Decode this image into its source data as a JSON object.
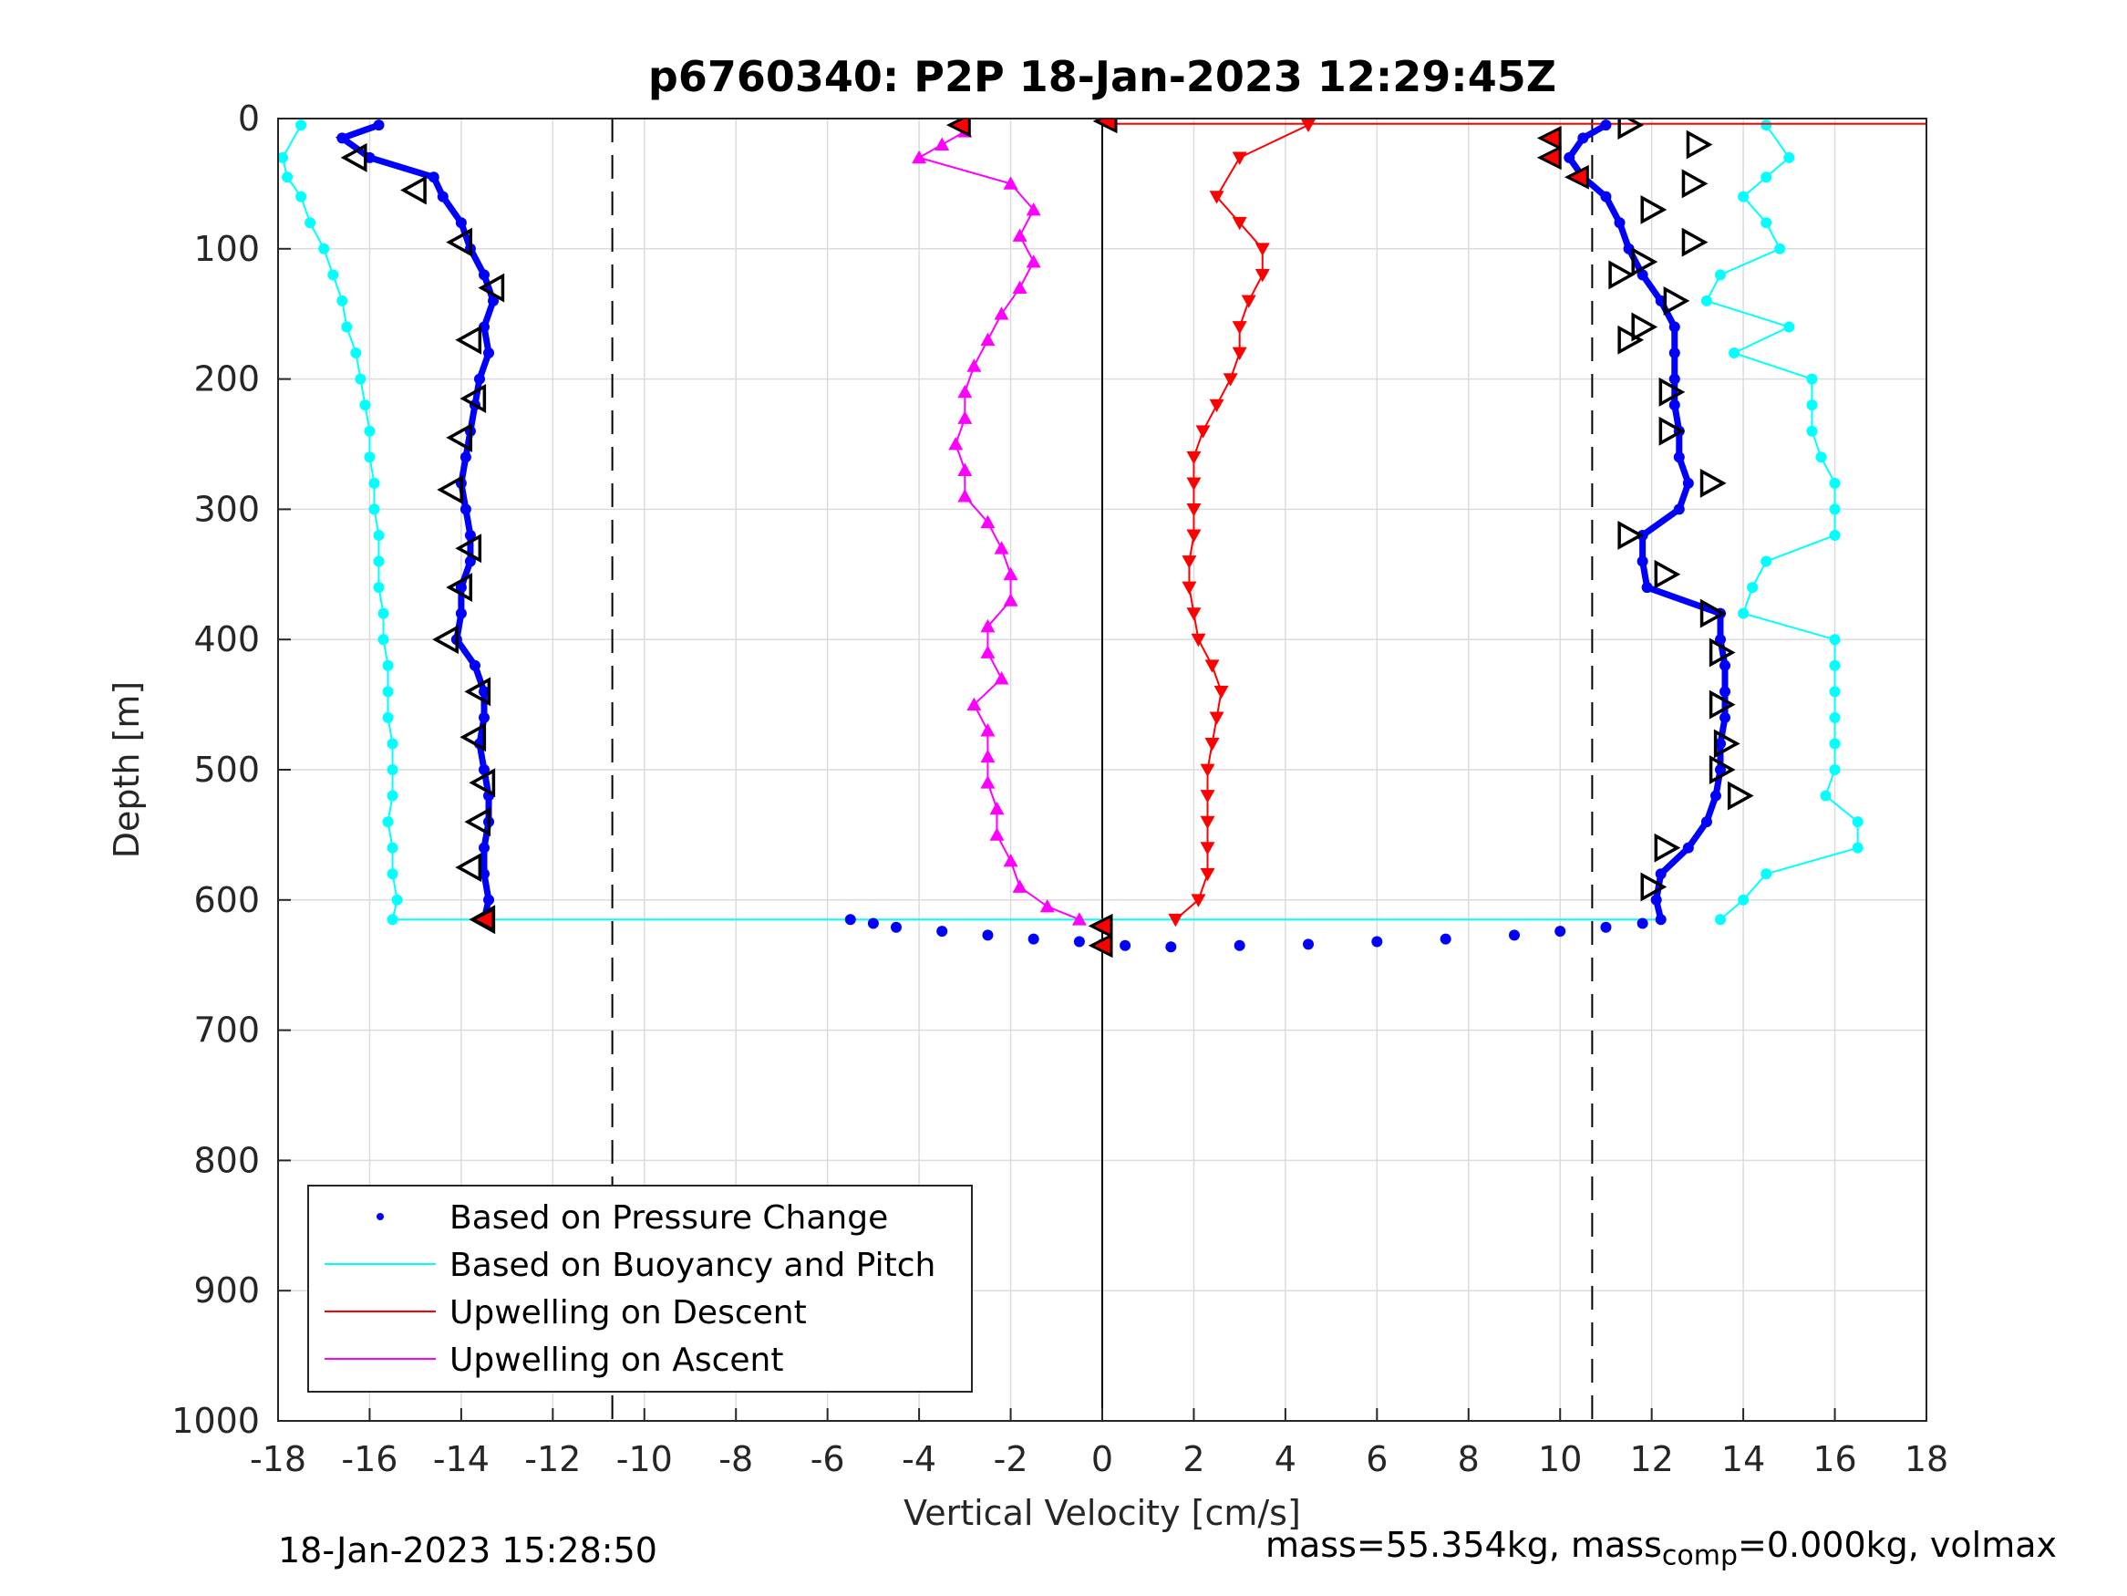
{
  "chart_data": {
    "type": "scatter",
    "title": "p6760340: P2P 18-Jan-2023 12:29:45Z",
    "xlabel": "Vertical Velocity [cm/s]",
    "ylabel": "Depth [m]",
    "xlim": [
      -18,
      18
    ],
    "ylim": [
      0,
      1000
    ],
    "y_reversed": true,
    "xticks": [
      "-18",
      "-16",
      "-14",
      "-12",
      "-10",
      "-8",
      "-6",
      "-4",
      "-2",
      "0",
      "2",
      "4",
      "6",
      "8",
      "10",
      "12",
      "14",
      "16",
      "18"
    ],
    "yticks": [
      "0",
      "100",
      "200",
      "300",
      "400",
      "500",
      "600",
      "700",
      "800",
      "900",
      "1000"
    ],
    "grid": true,
    "legend_position": "bottom-left",
    "legend": [
      {
        "label": "Based on Pressure Change",
        "style": "dot",
        "color": "#0000ff"
      },
      {
        "label": "Based on Buoyancy and Pitch",
        "style": "line",
        "color": "#00ffff"
      },
      {
        "label": "Upwelling on Descent",
        "style": "line",
        "color": "#ff0000"
      },
      {
        "label": "Upwelling on Ascent",
        "style": "line",
        "color": "#ff00ff"
      }
    ],
    "reference_lines": {
      "dashed_x": [
        -10.7,
        10.7
      ],
      "solid_x": [
        0
      ]
    },
    "series": [
      {
        "name": "Based on Pressure Change",
        "color": "#0000ff",
        "marker": "dot",
        "depth": [
          5,
          15,
          30,
          45,
          60,
          80,
          100,
          120,
          140,
          160,
          180,
          200,
          220,
          240,
          260,
          280,
          300,
          320,
          340,
          360,
          380,
          400,
          420,
          440,
          460,
          480,
          500,
          520,
          540,
          560,
          580,
          600,
          615
        ],
        "descent_velocity": [
          -15.8,
          -16.6,
          -16.0,
          -14.6,
          -14.4,
          -14.0,
          -13.8,
          -13.5,
          -13.3,
          -13.5,
          -13.4,
          -13.6,
          -13.7,
          -13.8,
          -13.9,
          -14.0,
          -13.9,
          -13.8,
          -13.8,
          -14.0,
          -14.0,
          -14.1,
          -13.7,
          -13.5,
          -13.5,
          -13.6,
          -13.5,
          -13.4,
          -13.4,
          -13.5,
          -13.5,
          -13.4,
          -13.5
        ],
        "ascent_velocity": [
          11.0,
          10.5,
          10.2,
          10.5,
          11.0,
          11.3,
          11.5,
          11.8,
          12.2,
          12.5,
          12.5,
          12.5,
          12.5,
          12.6,
          12.6,
          12.8,
          12.6,
          11.8,
          11.8,
          11.9,
          13.5,
          13.5,
          13.6,
          13.6,
          13.6,
          13.5,
          13.5,
          13.4,
          13.2,
          12.8,
          12.2,
          12.1,
          12.2
        ],
        "bottom_turn": {
          "depth": [
            615,
            618,
            621,
            624,
            627,
            630,
            632,
            634,
            635,
            636,
            635,
            634,
            632,
            630,
            627,
            624,
            621,
            618
          ],
          "velocity": [
            -5.5,
            -5.0,
            -4.5,
            -3.5,
            -2.5,
            -1.5,
            -0.5,
            0,
            0.5,
            1.5,
            3.0,
            4.5,
            6.0,
            7.5,
            9.0,
            10.0,
            11.0,
            11.8
          ]
        }
      },
      {
        "name": "Based on Buoyancy and Pitch",
        "color": "#00ffff",
        "marker": "dot-line",
        "depth": [
          5,
          30,
          45,
          60,
          80,
          100,
          120,
          140,
          160,
          180,
          200,
          220,
          240,
          260,
          280,
          300,
          320,
          340,
          360,
          380,
          400,
          420,
          440,
          460,
          480,
          500,
          520,
          540,
          560,
          580,
          600,
          615
        ],
        "descent_velocity": [
          -17.5,
          -17.9,
          -17.8,
          -17.5,
          -17.3,
          -17.0,
          -16.8,
          -16.6,
          -16.5,
          -16.3,
          -16.2,
          -16.1,
          -16.0,
          -16.0,
          -15.9,
          -15.9,
          -15.8,
          -15.8,
          -15.8,
          -15.7,
          -15.7,
          -15.6,
          -15.6,
          -15.6,
          -15.5,
          -15.5,
          -15.5,
          -15.6,
          -15.5,
          -15.5,
          -15.4,
          -15.5
        ],
        "ascent_velocity": [
          14.5,
          15.0,
          14.5,
          14.0,
          14.5,
          14.8,
          13.5,
          13.2,
          15.0,
          13.8,
          15.5,
          15.5,
          15.5,
          15.7,
          16.0,
          16.0,
          16.0,
          14.5,
          14.2,
          14.0,
          16.0,
          16.0,
          16.0,
          16.0,
          16.0,
          16.0,
          15.8,
          16.5,
          16.5,
          14.5,
          14.0,
          13.5
        ]
      },
      {
        "name": "Upwelling on Descent",
        "color": "#ff0000",
        "marker": "triangle-down",
        "depth": [
          5,
          30,
          60,
          80,
          100,
          120,
          140,
          160,
          180,
          200,
          220,
          240,
          260,
          280,
          300,
          320,
          340,
          360,
          380,
          400,
          420,
          440,
          460,
          480,
          500,
          520,
          540,
          560,
          580,
          600,
          615
        ],
        "velocity": [
          4.5,
          3.0,
          2.5,
          3.0,
          3.5,
          3.5,
          3.2,
          3.0,
          3.0,
          2.8,
          2.5,
          2.2,
          2.0,
          2.0,
          2.0,
          2.0,
          1.9,
          1.9,
          2.0,
          2.1,
          2.4,
          2.6,
          2.5,
          2.4,
          2.3,
          2.3,
          2.3,
          2.3,
          2.3,
          2.1,
          1.6
        ]
      },
      {
        "name": "Upwelling on Ascent",
        "color": "#ff00ff",
        "marker": "triangle-up",
        "depth": [
          10,
          20,
          30,
          50,
          70,
          90,
          110,
          130,
          150,
          170,
          190,
          210,
          230,
          250,
          270,
          290,
          310,
          330,
          350,
          370,
          390,
          410,
          430,
          450,
          470,
          490,
          510,
          530,
          550,
          570,
          590,
          605,
          615
        ],
        "velocity": [
          -3.0,
          -3.5,
          -4.0,
          -2.0,
          -1.5,
          -1.8,
          -1.5,
          -1.8,
          -2.2,
          -2.5,
          -2.8,
          -3.0,
          -3.0,
          -3.2,
          -3.0,
          -3.0,
          -2.5,
          -2.2,
          -2.0,
          -2.0,
          -2.5,
          -2.5,
          -2.2,
          -2.8,
          -2.5,
          -2.5,
          -2.5,
          -2.3,
          -2.3,
          -2.0,
          -1.8,
          -1.2,
          -0.5
        ]
      }
    ],
    "markers_left_triangle": {
      "depth": [
        30,
        55,
        95,
        130,
        170,
        215,
        245,
        285,
        330,
        360,
        400,
        440,
        475,
        510,
        540,
        575,
        615
      ],
      "velocity": [
        -16.3,
        -15.0,
        -14.0,
        -13.3,
        -13.8,
        -13.7,
        -14.0,
        -14.2,
        -13.8,
        -14.0,
        -14.3,
        -13.6,
        -13.7,
        -13.5,
        -13.6,
        -13.8,
        -13.5
      ]
    },
    "markers_right_triangle": {
      "depth": [
        5,
        20,
        50,
        70,
        95,
        110,
        120,
        140,
        160,
        170,
        210,
        240,
        280,
        320,
        350,
        380,
        410,
        450,
        480,
        500,
        520,
        560,
        590
      ],
      "velocity": [
        11.5,
        13.0,
        12.9,
        12.0,
        12.9,
        11.8,
        11.3,
        12.5,
        11.8,
        11.5,
        12.4,
        12.4,
        13.3,
        11.5,
        12.3,
        13.3,
        13.5,
        13.5,
        13.6,
        13.5,
        13.9,
        12.3,
        12.0
      ]
    },
    "highlight_points": [
      {
        "depth": 5,
        "velocity": -3.1
      },
      {
        "depth": 2,
        "velocity": 0.1
      },
      {
        "depth": 15,
        "velocity": 9.8
      },
      {
        "depth": 30,
        "velocity": 9.8
      },
      {
        "depth": 45,
        "velocity": 10.4
      },
      {
        "depth": 615,
        "velocity": -13.5
      },
      {
        "depth": 635,
        "velocity": 0.0
      },
      {
        "depth": 620,
        "velocity": 0.0
      }
    ]
  },
  "footer": {
    "timestamp": "18-Jan-2023 15:28:50",
    "mass_text": "mass=55.354kg, mass",
    "comp_subscript": "comp",
    "mass_comp_text": "=0.000kg, volmax"
  }
}
